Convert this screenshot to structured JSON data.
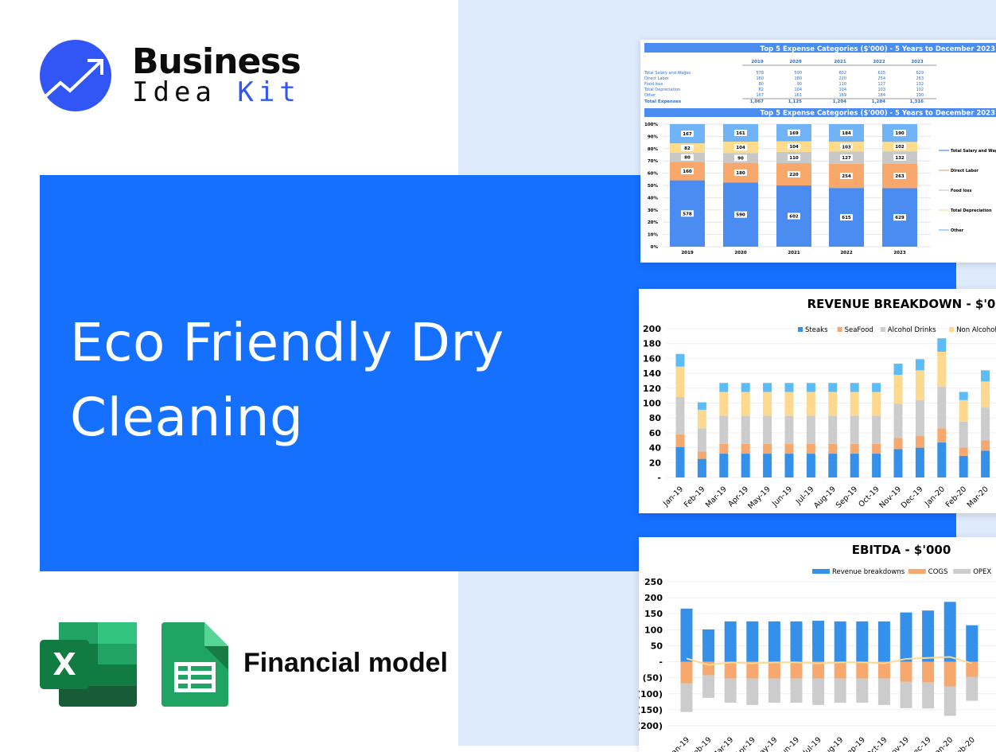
{
  "brand": {
    "line1": "Business",
    "line2a": "Idea",
    "line2b": "Kit",
    "accent": "#3156f5"
  },
  "hero": {
    "title": "Eco Friendly Dry Cleaning",
    "bg": "#1570ff"
  },
  "footer": {
    "label": "Financial model",
    "icons": [
      "excel-icon",
      "google-sheets-icon"
    ]
  },
  "expense_panel": {
    "table_title": "Top 5 Expense Categories ($'000) - 5 Years to December 2023",
    "years": [
      "2019",
      "2020",
      "2021",
      "2022",
      "2023"
    ],
    "rows": [
      {
        "label": "Total Salary and Wages",
        "values": [
          "578",
          "590",
          "602",
          "615",
          "629"
        ]
      },
      {
        "label": "Direct Labor",
        "values": [
          "160",
          "180",
          "220",
          "254",
          "263"
        ]
      },
      {
        "label": "Food loss",
        "values": [
          "80",
          "90",
          "110",
          "127",
          "132"
        ]
      },
      {
        "label": "Total Depreciation",
        "values": [
          "82",
          "104",
          "104",
          "103",
          "102"
        ]
      },
      {
        "label": "Other",
        "values": [
          "167",
          "161",
          "169",
          "184",
          "190"
        ]
      }
    ],
    "total": {
      "label": "Total Expenses",
      "values": [
        "1,067",
        "1,125",
        "1,204",
        "1,284",
        "1,316"
      ]
    }
  },
  "chart_data": [
    {
      "type": "bar",
      "stacked": "percent",
      "title": "Top 5 Expense Categories ($'000) - 5 Years to December 2023",
      "categories": [
        "2019",
        "2020",
        "2021",
        "2022",
        "2023"
      ],
      "yticks": [
        "0%",
        "10%",
        "20%",
        "30%",
        "40%",
        "50%",
        "60%",
        "70%",
        "80%",
        "90%",
        "100%"
      ],
      "legend_placement": "right",
      "series": [
        {
          "name": "Total Salary and Wages",
          "values": [
            578,
            590,
            602,
            615,
            629
          ],
          "color": "#4a8cf0"
        },
        {
          "name": "Direct Labor",
          "values": [
            160,
            180,
            220,
            254,
            263
          ],
          "color": "#f9a86c"
        },
        {
          "name": "Food loss",
          "values": [
            80,
            90,
            110,
            127,
            132
          ],
          "color": "#c8c8c8"
        },
        {
          "name": "Total Depreciation",
          "values": [
            82,
            104,
            104,
            103,
            102
          ],
          "color": "#fedc8c"
        },
        {
          "name": "Other",
          "values": [
            167,
            161,
            169,
            184,
            190
          ],
          "color": "#70b4f7"
        }
      ]
    },
    {
      "type": "bar",
      "stacked": true,
      "title": "REVENUE BREAKDOWN - $'0",
      "categories": [
        "Jan-19",
        "Feb-19",
        "Mar-19",
        "Apr-19",
        "May-19",
        "Jun-19",
        "Jul-19",
        "Aug-19",
        "Sep-19",
        "Oct-19",
        "Nov-19",
        "Dec-19",
        "Jan-20",
        "Feb-20",
        "Mar-20"
      ],
      "ylim": [
        0,
        200
      ],
      "yticks": [
        "-",
        "20",
        "40",
        "60",
        "80",
        "100",
        "120",
        "140",
        "160",
        "180",
        "200"
      ],
      "legend_placement": "top",
      "series": [
        {
          "name": "Steaks",
          "values": [
            41,
            25,
            32,
            32,
            32,
            32,
            32,
            32,
            32,
            32,
            38,
            40,
            47,
            29,
            36
          ],
          "color": "#3490e8"
        },
        {
          "name": "SeaFood",
          "values": [
            17,
            10,
            13,
            13,
            13,
            13,
            13,
            13,
            13,
            13,
            15,
            16,
            19,
            11,
            14
          ],
          "color": "#f7a86e"
        },
        {
          "name": "Alcohol Drinks",
          "values": [
            50,
            31,
            38,
            38,
            38,
            38,
            38,
            38,
            38,
            38,
            46,
            48,
            56,
            35,
            44
          ],
          "color": "#cccccc"
        },
        {
          "name": "Non Alcohol Drinks",
          "values": [
            41,
            25,
            32,
            32,
            32,
            32,
            32,
            32,
            32,
            32,
            39,
            40,
            47,
            29,
            35
          ],
          "color": "#fcd98e"
        },
        {
          "values": [
            17,
            10,
            12,
            12,
            12,
            12,
            12,
            12,
            12,
            12,
            15,
            15,
            18,
            11,
            15
          ],
          "color": "#5bbcf7"
        }
      ]
    },
    {
      "type": "bar",
      "stacked": true,
      "title": "EBITDA - $'000",
      "categories": [
        "Jan-19",
        "Feb-19",
        "Mar-19",
        "Apr-19",
        "May-19",
        "Jun-19",
        "Jul-19",
        "Aug-19",
        "Sep-19",
        "Oct-19",
        "Nov-19",
        "Dec-19",
        "Jan-20",
        "Feb-20"
      ],
      "ylim": [
        -200,
        250
      ],
      "yticks": [
        "(200)",
        "(150)",
        "(100)",
        "(50)",
        "-",
        "50",
        "100",
        "150",
        "200",
        "250"
      ],
      "legend_placement": "top",
      "series": [
        {
          "name": "Revenue breakdowns",
          "values": [
            166,
            101,
            126,
            126,
            126,
            126,
            128,
            126,
            126,
            126,
            154,
            160,
            187,
            114
          ],
          "color": "#3490e8"
        },
        {
          "name": "COGS",
          "values": [
            -67,
            -42,
            -52,
            -52,
            -52,
            -52,
            -52,
            -52,
            -52,
            -52,
            -62,
            -65,
            -77,
            -47
          ],
          "color": "#f7a86e"
        },
        {
          "name": "OPEX",
          "values": [
            -90,
            -71,
            -76,
            -83,
            -76,
            -76,
            -83,
            -76,
            -76,
            -83,
            -83,
            -81,
            -92,
            -75
          ],
          "color": "#cccccc"
        },
        {
          "type": "line",
          "values": [
            10,
            -10,
            -2,
            -5,
            -2,
            -2,
            -5,
            -2,
            -2,
            -5,
            9,
            12,
            15,
            -5
          ],
          "color": "#fcd98e"
        }
      ]
    }
  ]
}
